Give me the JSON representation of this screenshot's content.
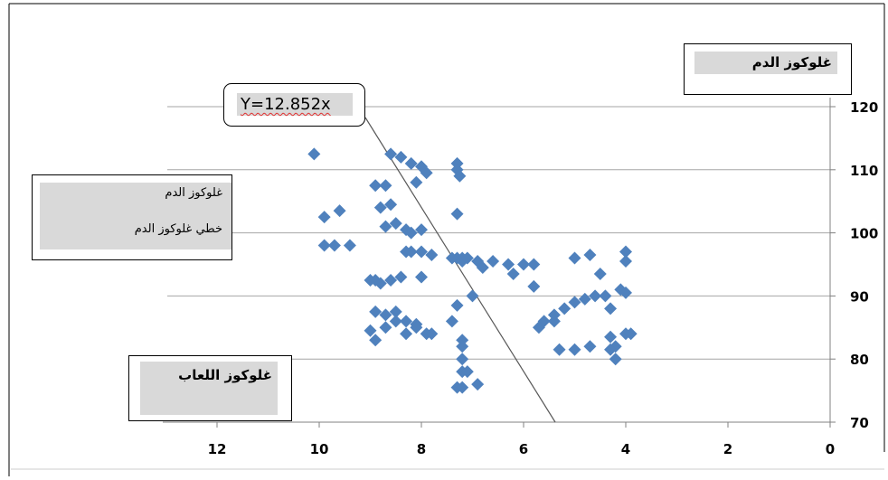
{
  "chart_data": {
    "type": "scatter",
    "ylabel": "غلوكوز الدم",
    "xlabel": "غلوكوز اللعاب",
    "equation": "Y=12.852x",
    "legend": {
      "placement": "left",
      "entries": [
        "غلوكوز الدم",
        "خطي غلوكوز الدم"
      ]
    },
    "xlim": [
      0,
      12
    ],
    "x_reversed": true,
    "ylim": [
      70,
      120
    ],
    "y_axis_side": "right",
    "x_ticks": [
      "12",
      "10",
      "8",
      "6",
      "4",
      "2",
      "0"
    ],
    "y_ticks": [
      "70",
      "80",
      "90",
      "100",
      "110",
      "120"
    ],
    "grid": "horizontal",
    "marker_color": "#4f81bd",
    "trendline": {
      "slope": 12.852,
      "color": "#595959"
    },
    "x": [
      10.1,
      9.9,
      9.6,
      9.9,
      9.7,
      9.4,
      8.9,
      8.7,
      8.8,
      8.6,
      8.7,
      8.5,
      8.3,
      8.2,
      8.0,
      8.0,
      7.3,
      7.3,
      7.2,
      9.0,
      8.9,
      8.8,
      8.6,
      8.4,
      8.0,
      8.3,
      8.2,
      7.8,
      7.4,
      7.2,
      7.1,
      6.9,
      8.9,
      8.7,
      8.5,
      8.3,
      8.1,
      7.9,
      7.3,
      7.2,
      7.2,
      7.0,
      6.8,
      6.6,
      6.3,
      6.0,
      5.8,
      6.2,
      5.8,
      9.0,
      8.9,
      8.7,
      8.5,
      8.3,
      8.1,
      7.8,
      7.4,
      7.2,
      7.2,
      7.1,
      6.9,
      7.3,
      7.2,
      5.6,
      5.4,
      5.2,
      5.0,
      4.8,
      4.6,
      4.4,
      4.3,
      4.1,
      4.0,
      5.0,
      4.7,
      4.5,
      4.0,
      4.0,
      5.3,
      5.0,
      4.7,
      4.3,
      4.2,
      4.0,
      3.9,
      4.2,
      4.3,
      5.7,
      5.4
    ],
    "y": [
      112.5,
      102.5,
      103.5,
      98.0,
      98.0,
      98.0,
      107.5,
      107.5,
      104.0,
      104.5,
      101.0,
      101.5,
      100.5,
      100.0,
      100.5,
      97.0,
      103.0,
      96.0,
      96.0,
      92.5,
      92.5,
      92.0,
      92.5,
      93.0,
      93.0,
      97.0,
      97.0,
      96.5,
      96.0,
      95.5,
      96.0,
      95.5,
      87.5,
      87.0,
      87.5,
      86.0,
      85.5,
      84.0,
      88.5,
      83.0,
      82.0,
      90.0,
      94.5,
      95.5,
      95.0,
      95.0,
      95.0,
      93.5,
      91.5,
      84.5,
      83.0,
      85.0,
      86.0,
      84.0,
      85.0,
      84.0,
      86.0,
      80.0,
      78.0,
      78.0,
      76.0,
      75.5,
      75.5,
      86.0,
      87.0,
      88.0,
      89.0,
      89.5,
      90.0,
      90.0,
      88.0,
      91.0,
      90.5,
      96.0,
      96.5,
      93.5,
      97.0,
      95.5,
      81.5,
      81.5,
      82.0,
      83.5,
      82.0,
      84.0,
      84.0,
      80.0,
      81.5,
      85.0,
      86.0
    ]
  },
  "top_cluster": {
    "x": [
      8.6,
      8.4,
      8.2,
      8.0,
      7.9,
      7.3,
      7.3,
      7.25,
      8.1
    ],
    "y": [
      112.5,
      112.0,
      111.0,
      110.5,
      109.5,
      111.0,
      110.0,
      109.0,
      108.0
    ]
  }
}
